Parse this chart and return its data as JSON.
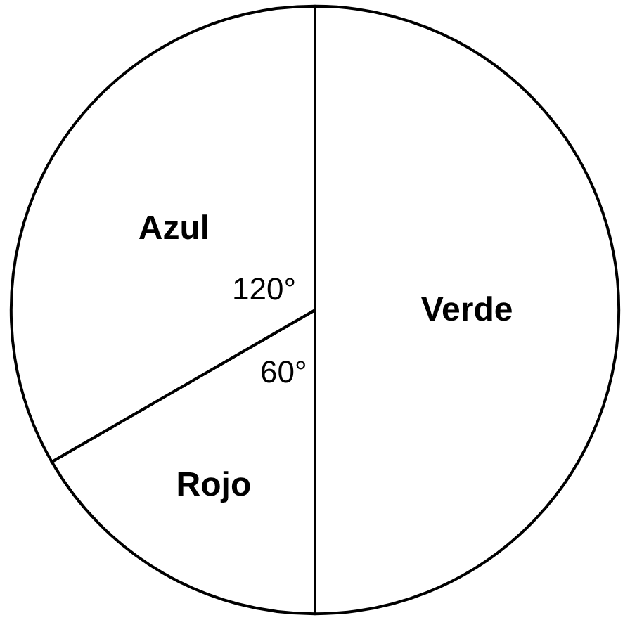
{
  "chart_data": {
    "type": "pie",
    "categories": [
      "Verde",
      "Rojo",
      "Azul"
    ],
    "values": [
      50,
      16.67,
      33.33
    ],
    "colors": [
      "#ffffff",
      "#ffffff",
      "#ffffff"
    ],
    "annotations": [
      "120°",
      "60°"
    ],
    "legend": false
  }
}
